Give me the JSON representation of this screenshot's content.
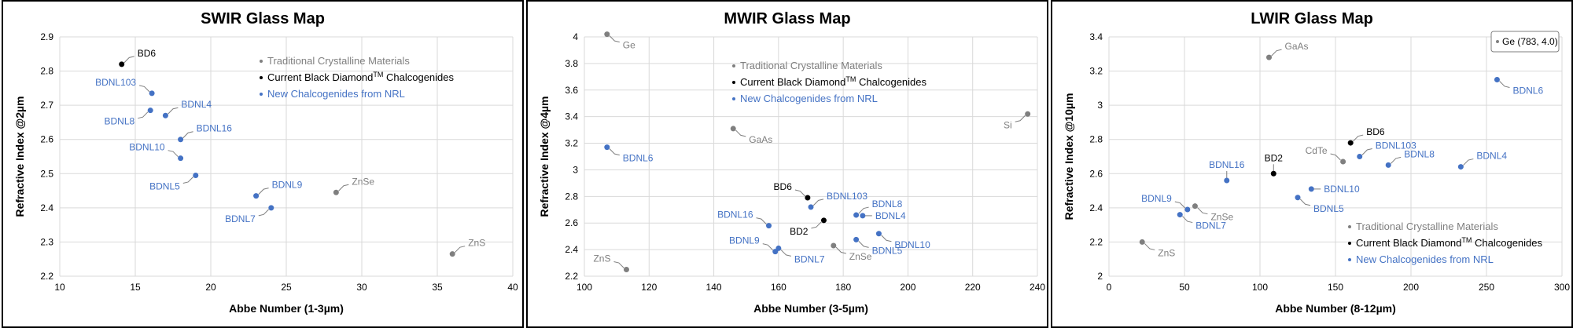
{
  "colors": {
    "traditional": "#7f7f7f",
    "black_diamond": "#000000",
    "nrl": "#4472c4"
  },
  "legend": [
    {
      "group": "traditional",
      "label": "Traditional Crystalline Materials"
    },
    {
      "group": "black_diamond",
      "label": "Current Black Diamond",
      "sup": "TM",
      "suffix": " Chalcogenides"
    },
    {
      "group": "nrl",
      "label": "New Chalcogenides from NRL"
    }
  ],
  "chart_data": [
    {
      "type": "scatter",
      "title": "SWIR Glass Map",
      "xlabel": "Abbe Number (1-3µm)",
      "ylabel": "Refractive Index @2µm",
      "xlim": [
        10,
        40
      ],
      "ylim": [
        2.2,
        2.9
      ],
      "xticks": [
        10,
        15,
        20,
        25,
        30,
        35,
        40
      ],
      "yticks": [
        2.2,
        2.3,
        2.4,
        2.5,
        2.6,
        2.7,
        2.8,
        2.9
      ],
      "xtick_labels": [
        "10",
        "15",
        "20",
        "25",
        "30",
        "35",
        "40"
      ],
      "ytick_labels": [
        "2.2",
        "2.3",
        "2.4",
        "2.5",
        "2.6",
        "2.7",
        "2.8",
        "2.9"
      ],
      "grid": true,
      "legend_position": "top-right",
      "points": [
        {
          "label": "BD6",
          "x": 14.1,
          "y": 2.82,
          "group": "black_diamond",
          "dir": "ne"
        },
        {
          "label": "BDNL103",
          "x": 16.1,
          "y": 2.735,
          "group": "nrl",
          "dir": "nw"
        },
        {
          "label": "BDNL4",
          "x": 17.0,
          "y": 2.67,
          "group": "nrl",
          "dir": "ne"
        },
        {
          "label": "BDNL8",
          "x": 16.0,
          "y": 2.685,
          "group": "nrl",
          "dir": "sw"
        },
        {
          "label": "BDNL16",
          "x": 18.0,
          "y": 2.6,
          "group": "nrl",
          "dir": "ne"
        },
        {
          "label": "BDNL10",
          "x": 18.0,
          "y": 2.545,
          "group": "nrl",
          "dir": "nw"
        },
        {
          "label": "BDNL5",
          "x": 19.0,
          "y": 2.495,
          "group": "nrl",
          "dir": "sw"
        },
        {
          "label": "BDNL9",
          "x": 23.0,
          "y": 2.435,
          "group": "nrl",
          "dir": "ne"
        },
        {
          "label": "BDNL7",
          "x": 24.0,
          "y": 2.4,
          "group": "nrl",
          "dir": "sw"
        },
        {
          "label": "ZnSe",
          "x": 28.3,
          "y": 2.445,
          "group": "traditional",
          "dir": "ne"
        },
        {
          "label": "ZnS",
          "x": 36.0,
          "y": 2.265,
          "group": "traditional",
          "dir": "ne"
        }
      ]
    },
    {
      "type": "scatter",
      "title": "MWIR Glass Map",
      "xlabel": "Abbe Number (3-5µm)",
      "ylabel": "Refractive Index @4µm",
      "xlim": [
        100,
        240
      ],
      "ylim": [
        2.2,
        4.0
      ],
      "xticks": [
        100,
        120,
        140,
        160,
        180,
        200,
        220,
        240
      ],
      "yticks": [
        2.2,
        2.4,
        2.6,
        2.8,
        3.0,
        3.2,
        3.4,
        3.6,
        3.8,
        4.0
      ],
      "xtick_labels": [
        "100",
        "120",
        "140",
        "160",
        "180",
        "200",
        "220",
        "240"
      ],
      "ytick_labels": [
        "2.2",
        "2.4",
        "2.6",
        "2.8",
        "3",
        "3.2",
        "3.4",
        "3.6",
        "3.8",
        "4"
      ],
      "grid": true,
      "legend_position": "top-center",
      "points": [
        {
          "label": "Ge",
          "x": 107,
          "y": 4.02,
          "group": "traditional",
          "dir": "se"
        },
        {
          "label": "Si",
          "x": 237,
          "y": 3.42,
          "group": "traditional",
          "dir": "sw"
        },
        {
          "label": "GaAs",
          "x": 146,
          "y": 3.31,
          "group": "traditional",
          "dir": "se"
        },
        {
          "label": "BDNL6",
          "x": 107,
          "y": 3.17,
          "group": "nrl",
          "dir": "se"
        },
        {
          "label": "BD6",
          "x": 169,
          "y": 2.79,
          "group": "black_diamond",
          "dir": "nw"
        },
        {
          "label": "BDNL103",
          "x": 170,
          "y": 2.72,
          "group": "nrl",
          "dir": "ne"
        },
        {
          "label": "BD2",
          "x": 174,
          "y": 2.62,
          "group": "black_diamond",
          "dir": "sw"
        },
        {
          "label": "BDNL8",
          "x": 184,
          "y": 2.66,
          "group": "nrl",
          "dir": "ne"
        },
        {
          "label": "BDNL4",
          "x": 186,
          "y": 2.655,
          "group": "nrl",
          "dir": "e"
        },
        {
          "label": "BDNL16",
          "x": 157,
          "y": 2.58,
          "group": "nrl",
          "dir": "nw"
        },
        {
          "label": "BDNL10",
          "x": 191,
          "y": 2.52,
          "group": "nrl",
          "dir": "se"
        },
        {
          "label": "BDNL5",
          "x": 184,
          "y": 2.475,
          "group": "nrl",
          "dir": "se"
        },
        {
          "label": "ZnSe",
          "x": 177,
          "y": 2.43,
          "group": "traditional",
          "dir": "se"
        },
        {
          "label": "BDNL9",
          "x": 159,
          "y": 2.385,
          "group": "nrl",
          "dir": "nw"
        },
        {
          "label": "BDNL7",
          "x": 160,
          "y": 2.41,
          "group": "nrl",
          "dir": "se"
        },
        {
          "label": "ZnS",
          "x": 113,
          "y": 2.25,
          "group": "traditional",
          "dir": "nw"
        }
      ]
    },
    {
      "type": "scatter",
      "title": "LWIR Glass Map",
      "xlabel": "Abbe Number (8-12µm)",
      "ylabel": "Refractive Index @10µm",
      "xlim": [
        0,
        300
      ],
      "ylim": [
        2.0,
        3.4
      ],
      "xticks": [
        0,
        50,
        100,
        150,
        200,
        250,
        300
      ],
      "yticks": [
        2.0,
        2.2,
        2.4,
        2.6,
        2.8,
        3.0,
        3.2,
        3.4
      ],
      "xtick_labels": [
        "0",
        "50",
        "100",
        "150",
        "200",
        "250",
        "300"
      ],
      "ytick_labels": [
        "2",
        "2.2",
        "2.4",
        "2.6",
        "2.8",
        "3",
        "3.2",
        "3.4"
      ],
      "grid": true,
      "legend_position": "bottom-right",
      "annotation": "Ge (783, 4.0)",
      "points": [
        {
          "label": "GaAs",
          "x": 106,
          "y": 3.28,
          "group": "traditional",
          "dir": "ne"
        },
        {
          "label": "BDNL6",
          "x": 257,
          "y": 3.15,
          "group": "nrl",
          "dir": "se"
        },
        {
          "label": "BD6",
          "x": 160,
          "y": 2.78,
          "group": "black_diamond",
          "dir": "ne"
        },
        {
          "label": "BDNL103",
          "x": 166,
          "y": 2.7,
          "group": "nrl",
          "dir": "ne"
        },
        {
          "label": "CdTe",
          "x": 155,
          "y": 2.67,
          "group": "traditional",
          "dir": "nw"
        },
        {
          "label": "BDNL8",
          "x": 185,
          "y": 2.65,
          "group": "nrl",
          "dir": "ne"
        },
        {
          "label": "BDNL4",
          "x": 233,
          "y": 2.64,
          "group": "nrl",
          "dir": "ne"
        },
        {
          "label": "BD2",
          "x": 109,
          "y": 2.6,
          "group": "black_diamond",
          "dir": "n"
        },
        {
          "label": "BDNL16",
          "x": 78,
          "y": 2.56,
          "group": "nrl",
          "dir": "n"
        },
        {
          "label": "BDNL10",
          "x": 134,
          "y": 2.51,
          "group": "nrl",
          "dir": "e"
        },
        {
          "label": "BDNL5",
          "x": 125,
          "y": 2.46,
          "group": "nrl",
          "dir": "se"
        },
        {
          "label": "BDNL9",
          "x": 52,
          "y": 2.39,
          "group": "nrl",
          "dir": "nw"
        },
        {
          "label": "ZnSe",
          "x": 57,
          "y": 2.41,
          "group": "traditional",
          "dir": "se"
        },
        {
          "label": "BDNL7",
          "x": 47,
          "y": 2.36,
          "group": "nrl",
          "dir": "se"
        },
        {
          "label": "ZnS",
          "x": 22,
          "y": 2.2,
          "group": "traditional",
          "dir": "se"
        }
      ]
    }
  ]
}
